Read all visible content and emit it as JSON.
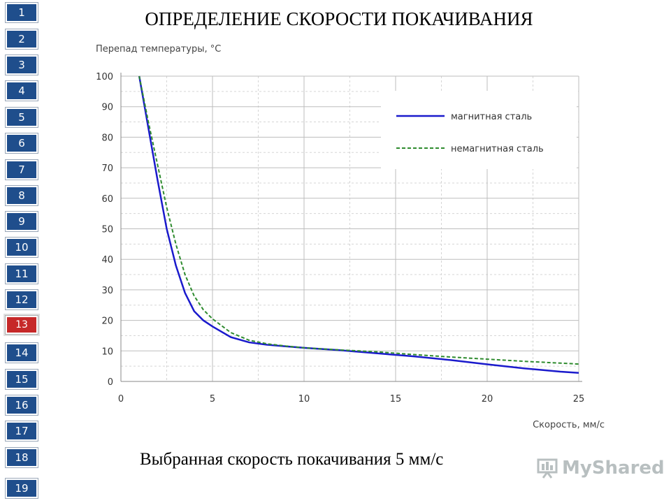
{
  "nav": {
    "items": [
      "1",
      "2",
      "3",
      "4",
      "5",
      "6",
      "7",
      "8",
      "9",
      "10",
      "11",
      "12",
      "13",
      "14",
      "15",
      "16",
      "17",
      "18",
      "19"
    ],
    "active": "13"
  },
  "title": "ОПРЕДЕЛЕНИЕ СКОРОСТИ ПОКАЧИВАНИЯ",
  "caption": "Выбранная скорость покачивания 5 мм/с",
  "watermark": "MyShared",
  "colors": {
    "nav": "#1f4e8c",
    "nav_active": "#c62828",
    "series_magnetic": "#1a1acc",
    "series_nonmagnetic": "#2e8b2e"
  },
  "chart_data": {
    "type": "line",
    "ylabel": "Перепад температуры, °С",
    "xlabel": "Скорость, мм/с",
    "xlim": [
      0,
      25
    ],
    "ylim": [
      0,
      100
    ],
    "xticks": [
      0,
      5,
      10,
      15,
      20,
      25
    ],
    "yticks": [
      0,
      10,
      20,
      30,
      40,
      50,
      60,
      70,
      80,
      90,
      100
    ],
    "grid": true,
    "legend_position": "top-right",
    "series": [
      {
        "name": "магнитная сталь",
        "style": "solid",
        "color": "#1a1acc",
        "x": [
          1,
          1.5,
          2,
          2.5,
          3,
          3.5,
          4,
          4.5,
          5,
          6,
          7,
          8,
          9,
          10,
          12,
          14,
          16,
          18,
          20,
          22,
          24,
          25
        ],
        "y": [
          100,
          83,
          66,
          50,
          38,
          29,
          23,
          20,
          18,
          14.5,
          12.8,
          12,
          11.5,
          11,
          10.2,
          9.2,
          8.2,
          7,
          5.6,
          4.3,
          3.2,
          2.8
        ]
      },
      {
        "name": "немагнитная сталь",
        "style": "dashed",
        "color": "#2e8b2e",
        "x": [
          1,
          1.5,
          2,
          2.5,
          3,
          3.5,
          4,
          4.5,
          5,
          6,
          7,
          8,
          9,
          10,
          12,
          14,
          16,
          18,
          20,
          22,
          24,
          25
        ],
        "y": [
          100,
          85,
          71,
          57,
          45,
          35,
          28,
          23.5,
          20.5,
          16,
          13.5,
          12.3,
          11.6,
          11,
          10.3,
          9.7,
          8.8,
          8,
          7.3,
          6.6,
          6,
          5.7
        ]
      }
    ]
  }
}
